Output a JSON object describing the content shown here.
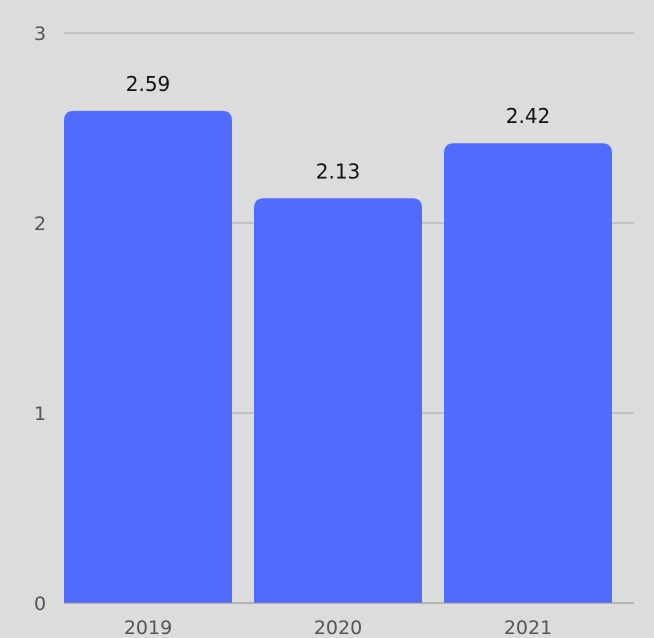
{
  "chart_data": {
    "type": "bar",
    "categories": [
      "2019",
      "2020",
      "2021"
    ],
    "values": [
      2.59,
      2.13,
      2.42
    ],
    "data_labels": [
      "2.59",
      "2.13",
      "2.42"
    ],
    "y_ticks": [
      "0",
      "1",
      "2",
      "3"
    ],
    "ylim": [
      0,
      3
    ],
    "grid": true,
    "legend": "none",
    "colors": {
      "bar": "#4f6cff",
      "background": "#dcdcdc",
      "grid": "#a9a9a9"
    }
  }
}
